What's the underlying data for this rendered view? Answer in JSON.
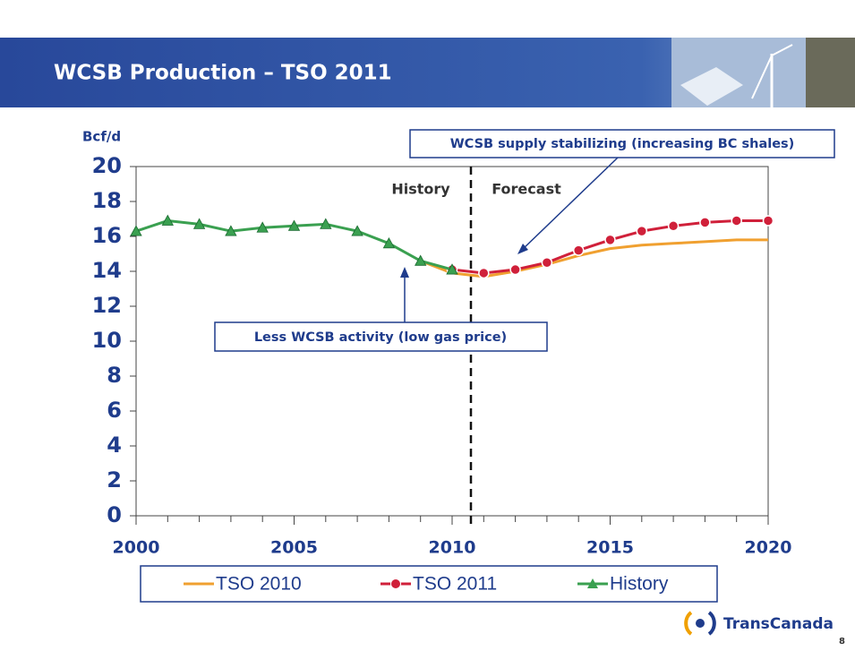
{
  "chart_data": {
    "type": "line",
    "title": "WCSB Production – TSO 2011",
    "y_label": "Bcf/d",
    "x": [
      2000,
      2001,
      2002,
      2003,
      2004,
      2005,
      2006,
      2007,
      2008,
      2009,
      2010,
      2011,
      2012,
      2013,
      2014,
      2015,
      2016,
      2017,
      2018,
      2019,
      2020
    ],
    "xlim": [
      2000,
      2020
    ],
    "xticks": [
      2000,
      2005,
      2010,
      2015,
      2020
    ],
    "ylim": [
      0,
      20
    ],
    "yticks": [
      0,
      2,
      4,
      6,
      8,
      10,
      12,
      14,
      16,
      18,
      20
    ],
    "series": [
      {
        "name": "TSO 2010",
        "color": "#f0a030",
        "marker": "none",
        "values": [
          null,
          null,
          null,
          null,
          null,
          null,
          null,
          null,
          null,
          14.6,
          13.9,
          13.7,
          14.0,
          14.4,
          14.9,
          15.3,
          15.5,
          15.6,
          15.7,
          15.8,
          15.8
        ]
      },
      {
        "name": "TSO 2011",
        "color": "#d0203a",
        "marker": "circle",
        "values": [
          null,
          null,
          null,
          null,
          null,
          null,
          null,
          null,
          null,
          null,
          14.1,
          13.9,
          14.1,
          14.5,
          15.2,
          15.8,
          16.3,
          16.6,
          16.8,
          16.9,
          16.9
        ]
      },
      {
        "name": "History",
        "color": "#3aa050",
        "marker": "triangle",
        "values": [
          16.3,
          16.9,
          16.7,
          16.3,
          16.5,
          16.6,
          16.7,
          16.3,
          15.6,
          14.6,
          14.1,
          null,
          null,
          null,
          null,
          null,
          null,
          null,
          null,
          null,
          null
        ]
      }
    ],
    "annotations": [
      "History",
      "Forecast",
      "WCSB supply stabilizing (increasing BC shales)",
      "Less WCSB activity (low gas price)"
    ]
  },
  "footer": {
    "logo": "TransCanada",
    "page": "8"
  }
}
